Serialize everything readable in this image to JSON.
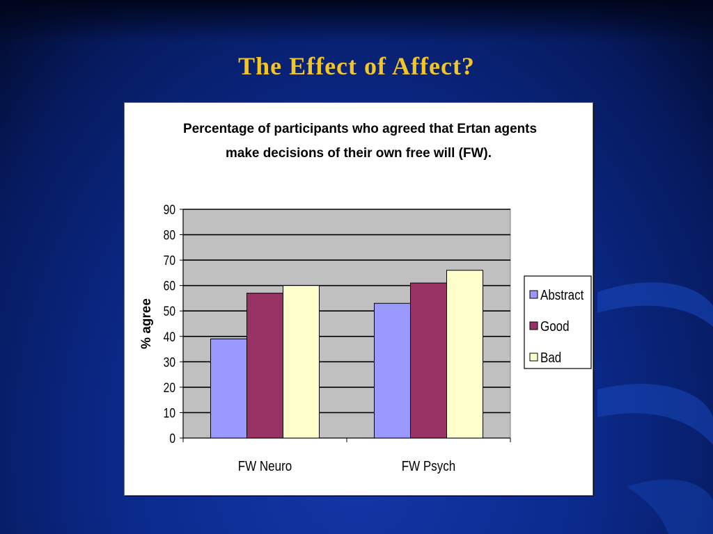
{
  "slide": {
    "title": "The Effect of Affect?",
    "title_color": "#f3c623"
  },
  "chart_data": {
    "type": "bar",
    "title_lines": [
      "Percentage of participants who agreed that Ertan agents",
      "make decisions of their own free will (FW)."
    ],
    "categories": [
      "FW Neuro",
      "FW Psych"
    ],
    "series": [
      {
        "name": "Abstract",
        "values": [
          39,
          53
        ],
        "color": "#9999ff"
      },
      {
        "name": "Good",
        "values": [
          57,
          61
        ],
        "color": "#993366"
      },
      {
        "name": "Bad",
        "values": [
          60,
          66
        ],
        "color": "#ffffcc"
      }
    ],
    "ylabel": "% agree",
    "xlabel": "",
    "ylim": [
      0,
      90
    ],
    "yticks": [
      0,
      10,
      20,
      30,
      40,
      50,
      60,
      70,
      80,
      90
    ],
    "grid": true,
    "plot_background": "#c0c0c0",
    "legend_position": "right"
  }
}
